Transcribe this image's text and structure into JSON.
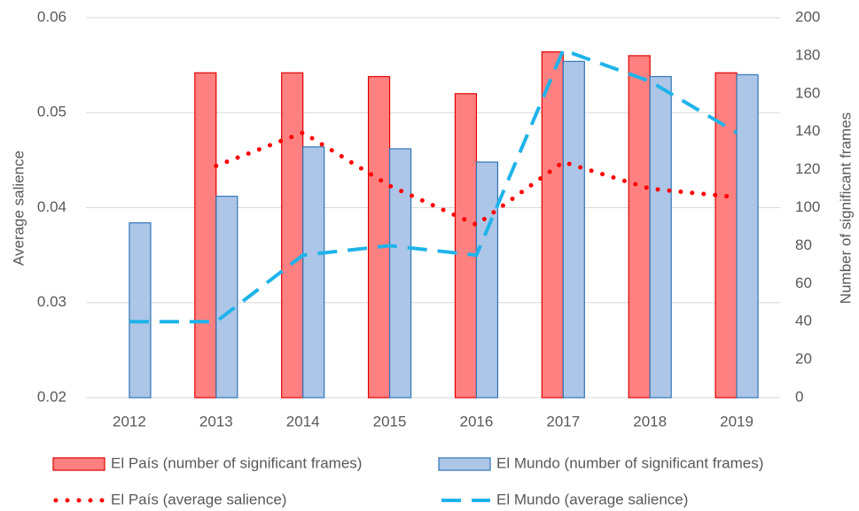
{
  "chart_data": {
    "type": "bar",
    "categories": [
      "2012",
      "2013",
      "2014",
      "2015",
      "2016",
      "2017",
      "2018",
      "2019"
    ],
    "ylabel": "Average salience",
    "y2label": "Number of significant frames",
    "ylim": [
      0.02,
      0.06
    ],
    "yticks": [
      0.02,
      0.03,
      0.04,
      0.05,
      0.06
    ],
    "y2lim": [
      0,
      200
    ],
    "y2ticks": [
      0,
      20,
      40,
      60,
      80,
      100,
      120,
      140,
      160,
      180,
      200
    ],
    "grid": true,
    "legend": "bottom",
    "series": [
      {
        "name": "El País (number of significant frames)",
        "type": "bar",
        "axis": "y2",
        "color": "#ff8080",
        "edge": "#e00000",
        "values": [
          null,
          171,
          171,
          169,
          160,
          182,
          180,
          171
        ]
      },
      {
        "name": "El Mundo (number of significant frames)",
        "type": "bar",
        "axis": "y2",
        "color": "#adc6e8",
        "edge": "#2e75b6",
        "values": [
          92,
          106,
          132,
          131,
          124,
          177,
          169,
          170
        ]
      },
      {
        "name": "El País (average salience)",
        "type": "line",
        "style": "dotted",
        "color": "#ff0000",
        "values": [
          null,
          0.0444,
          0.0479,
          0.0423,
          0.0382,
          0.0448,
          0.042,
          0.0411
        ]
      },
      {
        "name": "El Mundo (average salience)",
        "type": "line",
        "style": "dashed",
        "color": "#1fb3ea",
        "values": [
          0.028,
          0.028,
          0.035,
          0.036,
          0.035,
          0.0566,
          0.0533,
          0.0479
        ]
      }
    ]
  }
}
